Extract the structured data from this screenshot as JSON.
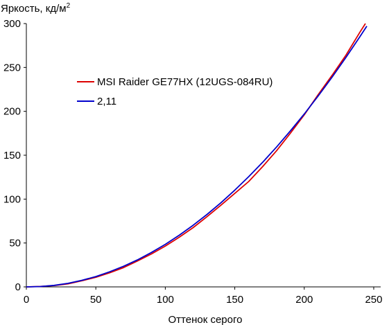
{
  "chart_data": {
    "type": "line",
    "title": "",
    "ylabel": "Яркость, кд/м",
    "ylabel_sup": "2",
    "xlabel": "Оттенок серого",
    "xlim": [
      0,
      255
    ],
    "ylim": [
      0,
      300
    ],
    "xticks": [
      0,
      50,
      100,
      150,
      200,
      250
    ],
    "yticks": [
      0,
      50,
      100,
      150,
      200,
      250,
      300
    ],
    "grid": false,
    "legend_position": "upper-left",
    "series": [
      {
        "name": "MSI Raider GE77HX (12UGS-084RU)",
        "color": "#dd0000",
        "x": [
          0,
          10,
          20,
          30,
          40,
          50,
          60,
          70,
          80,
          90,
          100,
          110,
          120,
          130,
          140,
          150,
          160,
          170,
          180,
          190,
          200,
          210,
          220,
          230,
          240,
          244
        ],
        "y": [
          0,
          0.5,
          1.5,
          3.5,
          7,
          11,
          16,
          22,
          29.5,
          37.5,
          46.5,
          56.5,
          67.5,
          80,
          93,
          106.5,
          120,
          137,
          155,
          175,
          196,
          219,
          241,
          264,
          290,
          300
        ]
      },
      {
        "name": "2,11",
        "color": "#0000cc",
        "x": [
          0,
          10,
          20,
          30,
          40,
          50,
          60,
          70,
          80,
          90,
          100,
          110,
          120,
          130,
          140,
          150,
          160,
          170,
          180,
          190,
          200,
          210,
          220,
          230,
          240,
          245
        ],
        "y": [
          0,
          0.4,
          1.7,
          4,
          7.5,
          11.8,
          17.2,
          23.5,
          30.8,
          39.2,
          48.5,
          58.8,
          70.2,
          82.5,
          95.8,
          110.2,
          125.5,
          141.9,
          159.2,
          177.6,
          197,
          217.4,
          238.9,
          261.4,
          284.9,
          297
        ]
      }
    ]
  }
}
